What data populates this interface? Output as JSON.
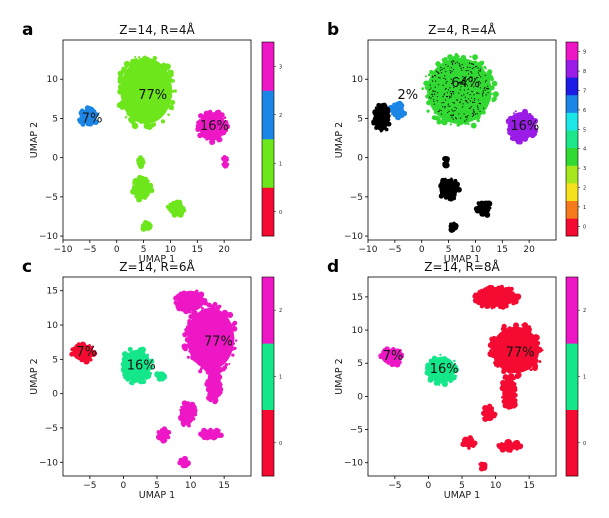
{
  "chart_data": [
    {
      "type": "scatter",
      "panel_label": "a",
      "title": "Z=14, R=4Å",
      "xlabel": "UMAP 1",
      "ylabel": "UMAP 2",
      "xlim": [
        -10,
        25
      ],
      "ylim": [
        -10.5,
        15
      ],
      "xticks": [
        "−10",
        "−5",
        "0",
        "5",
        "10",
        "15",
        "20"
      ],
      "xtick_values": [
        -10,
        -5,
        0,
        5,
        10,
        15,
        20
      ],
      "yticks": [
        "−10",
        "−5",
        "0",
        "5",
        "10"
      ],
      "ytick_values": [
        -10,
        -5,
        0,
        5,
        10
      ],
      "colorbar": {
        "colors": [
          "#f50a32",
          "#6de61c",
          "#1c86e6",
          "#ee17c5"
        ],
        "ticks": [
          "0",
          "1",
          "2",
          "3"
        ]
      },
      "clusters": [
        {
          "name": "main",
          "x": 5.5,
          "y": 8.5,
          "rx": 4.8,
          "ry": 4.2,
          "color_index": 1
        },
        {
          "name": "left",
          "x": -5.3,
          "y": 5.2,
          "rx": 1.6,
          "ry": 1.0,
          "color_index": 2
        },
        {
          "name": "right",
          "x": 17.8,
          "y": 4.0,
          "rx": 2.5,
          "ry": 1.8,
          "color_index": 3
        },
        {
          "name": "right-small",
          "x": 20.2,
          "y": -0.5,
          "rx": 0.4,
          "ry": 0.6,
          "color_index": 3
        },
        {
          "name": "lower-1",
          "x": 4.8,
          "y": -4.0,
          "rx": 1.6,
          "ry": 1.3,
          "color_index": 1
        },
        {
          "name": "lower-2",
          "x": 11.0,
          "y": -6.5,
          "rx": 1.4,
          "ry": 0.8,
          "color_index": 1
        },
        {
          "name": "lower-3",
          "x": 5.5,
          "y": -8.8,
          "rx": 0.6,
          "ry": 0.5,
          "color_index": 1
        },
        {
          "name": "mid-dot",
          "x": 4.5,
          "y": -0.5,
          "rx": 0.3,
          "ry": 0.5,
          "color_index": 1
        }
      ],
      "annotations": [
        {
          "text": "77%",
          "x": 4.0,
          "y": 7.5
        },
        {
          "text": "7%",
          "x": -6.5,
          "y": 4.5
        },
        {
          "text": "16%",
          "x": 15.5,
          "y": 3.5
        }
      ]
    },
    {
      "type": "scatter",
      "panel_label": "b",
      "title": "Z=4, R=4Å",
      "xlabel": "UMAP 1",
      "ylabel": "UMAP 2",
      "xlim": [
        -10,
        25
      ],
      "ylim": [
        -10.5,
        15
      ],
      "xticks": [
        "−10",
        "−5",
        "0",
        "5",
        "10",
        "15",
        "20"
      ],
      "xtick_values": [
        -10,
        -5,
        0,
        5,
        10,
        15,
        20
      ],
      "yticks": [
        "−10",
        "−5",
        "0",
        "5",
        "10"
      ],
      "ytick_values": [
        -10,
        -5,
        0,
        5,
        10
      ],
      "colorbar": {
        "colors": [
          "#f50a32",
          "#f57a1c",
          "#f5e11c",
          "#a5e61c",
          "#33d933",
          "#1ce68a",
          "#1ce6e6",
          "#1c86e6",
          "#1c1ce6",
          "#9a1ce6",
          "#ee17c5"
        ],
        "ticks": [
          "0",
          "1",
          "2",
          "3",
          "4",
          "5",
          "6",
          "7",
          "8",
          "9"
        ]
      },
      "clusters": [
        {
          "name": "main",
          "x": 7.0,
          "y": 8.5,
          "rx": 6.0,
          "ry": 4.2,
          "color_index": 4
        },
        {
          "name": "left-blue",
          "x": -4.5,
          "y": 6.0,
          "rx": 1.2,
          "ry": 0.9,
          "color_index": 7
        },
        {
          "name": "left-black",
          "x": -7.5,
          "y": 5.0,
          "rx": 1.4,
          "ry": 1.6,
          "color_index": -1
        },
        {
          "name": "right",
          "x": 18.5,
          "y": 4.0,
          "rx": 2.5,
          "ry": 1.8,
          "color_index": 9
        },
        {
          "name": "lower-1",
          "x": 5.0,
          "y": -4.0,
          "rx": 1.7,
          "ry": 1.3,
          "color_index": -1
        },
        {
          "name": "lower-2",
          "x": 11.5,
          "y": -6.5,
          "rx": 1.3,
          "ry": 0.8,
          "color_index": -1
        },
        {
          "name": "lower-3",
          "x": 5.8,
          "y": -8.8,
          "rx": 0.5,
          "ry": 0.4,
          "color_index": -1
        },
        {
          "name": "mid-dot",
          "x": 4.5,
          "y": -0.5,
          "rx": 0.3,
          "ry": 0.5,
          "color_index": -1
        }
      ],
      "annotations": [
        {
          "text": "64%",
          "x": 5.5,
          "y": 9.0
        },
        {
          "text": "2%",
          "x": -4.5,
          "y": 7.5
        },
        {
          "text": "16%",
          "x": 16.5,
          "y": 3.5
        }
      ]
    },
    {
      "type": "scatter",
      "panel_label": "c",
      "title": "Z=14, R=6Å",
      "xlabel": "UMAP 1",
      "ylabel": "UMAP 2",
      "xlim": [
        -9,
        19
      ],
      "ylim": [
        -12,
        17
      ],
      "xticks": [
        "−5",
        "0",
        "5",
        "10",
        "15"
      ],
      "xtick_values": [
        -5,
        0,
        5,
        10,
        15
      ],
      "yticks": [
        "−10",
        "−5",
        "0",
        "5",
        "10",
        "15"
      ],
      "ytick_values": [
        -10,
        -5,
        0,
        5,
        10,
        15
      ],
      "colorbar": {
        "colors": [
          "#f50a32",
          "#14e68a",
          "#ee17c5"
        ],
        "ticks": [
          "0",
          "1",
          "2"
        ]
      },
      "clusters": [
        {
          "name": "main",
          "x": 13.0,
          "y": 8.0,
          "rx": 3.5,
          "ry": 4.5,
          "color_index": 2
        },
        {
          "name": "top",
          "x": 10.0,
          "y": 13.5,
          "rx": 2.0,
          "ry": 1.5,
          "color_index": 2
        },
        {
          "name": "tail",
          "x": 13.5,
          "y": 1.5,
          "rx": 1.0,
          "ry": 2.5,
          "color_index": 2
        },
        {
          "name": "green",
          "x": 2.0,
          "y": 4.0,
          "rx": 2.0,
          "ry": 2.4,
          "color_index": 1
        },
        {
          "name": "red",
          "x": -6.0,
          "y": 6.0,
          "rx": 1.6,
          "ry": 1.2,
          "color_index": 0
        },
        {
          "name": "green-small",
          "x": 5.5,
          "y": 2.5,
          "rx": 0.6,
          "ry": 0.4,
          "color_index": 1
        },
        {
          "name": "lower-1",
          "x": 9.5,
          "y": -3.0,
          "rx": 1.1,
          "ry": 1.5,
          "color_index": 2
        },
        {
          "name": "lower-2",
          "x": 6.0,
          "y": -6.0,
          "rx": 0.8,
          "ry": 0.8,
          "color_index": 2
        },
        {
          "name": "lower-3",
          "x": 13.0,
          "y": -5.8,
          "rx": 1.5,
          "ry": 0.6,
          "color_index": 2
        },
        {
          "name": "lower-4",
          "x": 9.0,
          "y": -10.0,
          "rx": 0.6,
          "ry": 0.5,
          "color_index": 2
        }
      ],
      "annotations": [
        {
          "text": "77%",
          "x": 12.0,
          "y": 7.0
        },
        {
          "text": "16%",
          "x": 0.5,
          "y": 3.5
        },
        {
          "text": "7%",
          "x": -7.0,
          "y": 5.5
        }
      ]
    },
    {
      "type": "scatter",
      "panel_label": "d",
      "title": "Z=14, R=8Å",
      "xlabel": "UMAP 1",
      "ylabel": "UMAP 2",
      "xlim": [
        -9,
        19
      ],
      "ylim": [
        -12,
        18
      ],
      "xticks": [
        "−5",
        "0",
        "5",
        "10",
        "15"
      ],
      "xtick_values": [
        -5,
        0,
        5,
        10,
        15
      ],
      "yticks": [
        "−10",
        "−5",
        "0",
        "5",
        "10",
        "15"
      ],
      "ytick_values": [
        -10,
        -5,
        0,
        5,
        10,
        15
      ],
      "colorbar": {
        "colors": [
          "#f50a32",
          "#14e68a",
          "#ee17c5"
        ],
        "ticks": [
          "0",
          "1",
          "2"
        ]
      },
      "clusters": [
        {
          "name": "main",
          "x": 13.0,
          "y": 7.0,
          "rx": 3.5,
          "ry": 3.5,
          "color_index": 0
        },
        {
          "name": "top",
          "x": 10.0,
          "y": 15.0,
          "rx": 3.0,
          "ry": 1.5,
          "color_index": 0
        },
        {
          "name": "tail",
          "x": 12.0,
          "y": 0.5,
          "rx": 1.0,
          "ry": 2.5,
          "color_index": 0
        },
        {
          "name": "green",
          "x": 2.0,
          "y": 4.0,
          "rx": 2.0,
          "ry": 2.0,
          "color_index": 1
        },
        {
          "name": "magenta",
          "x": -5.5,
          "y": 6.0,
          "rx": 1.5,
          "ry": 1.2,
          "color_index": 2
        },
        {
          "name": "lower-1",
          "x": 6.0,
          "y": -7.0,
          "rx": 0.9,
          "ry": 0.7,
          "color_index": 0
        },
        {
          "name": "lower-2",
          "x": 12.0,
          "y": -7.5,
          "rx": 1.5,
          "ry": 0.6,
          "color_index": 0
        },
        {
          "name": "lower-3",
          "x": 8.0,
          "y": -10.5,
          "rx": 0.4,
          "ry": 0.4,
          "color_index": 0
        },
        {
          "name": "lower-4",
          "x": 9.0,
          "y": -2.5,
          "rx": 0.8,
          "ry": 1.0,
          "color_index": 0
        }
      ],
      "annotations": [
        {
          "text": "77%",
          "x": 11.5,
          "y": 6.0
        },
        {
          "text": "16%",
          "x": 0.2,
          "y": 3.5
        },
        {
          "text": "7%",
          "x": -6.8,
          "y": 5.5
        }
      ]
    }
  ]
}
